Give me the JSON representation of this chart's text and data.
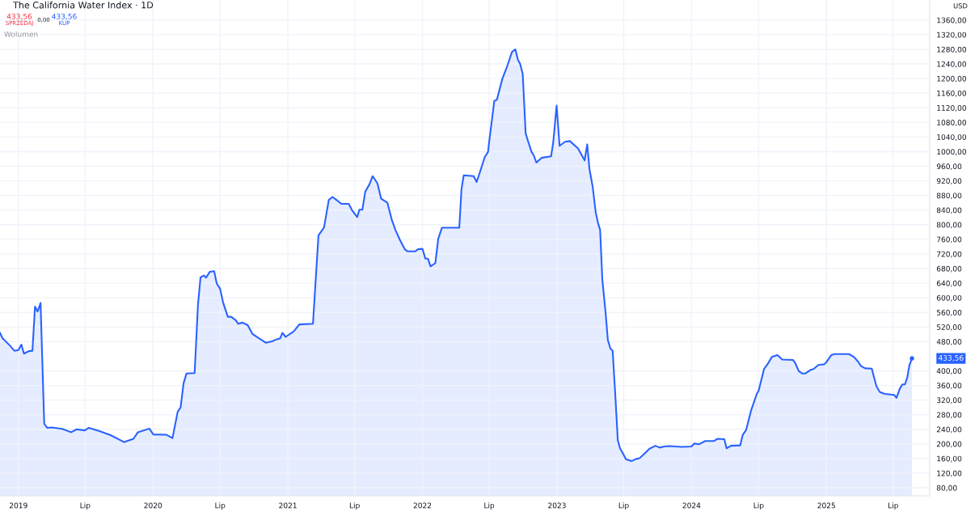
{
  "chart_data": {
    "type": "area",
    "title": "The California Water Index · 1D",
    "annotations": [
      "433,56",
      "SPRZEDAJ",
      "0,00",
      "433,56",
      "KUP",
      "Wolumen",
      "USD",
      "433,56"
    ],
    "x": [
      "2018-11-12",
      "2018-11-19",
      "2018-12-08",
      "2018-12-21",
      "2019-01-01",
      "2019-01-09",
      "2019-01-16",
      "2019-01-29",
      "2019-02-08",
      "2019-02-15",
      "2019-02-22",
      "2019-03-02",
      "2019-03-12",
      "2019-03-20",
      "2019-04-02",
      "2019-04-30",
      "2019-05-24",
      "2019-06-08",
      "2019-06-30",
      "2019-07-11",
      "2019-08-09",
      "2019-09-08",
      "2019-10-15",
      "2019-11-09",
      "2019-11-21",
      "2019-12-22",
      "2020-01-02",
      "2020-02-07",
      "2020-02-23",
      "2020-03-08",
      "2020-03-16",
      "2020-03-24",
      "2020-04-01",
      "2020-04-23",
      "2020-05-02",
      "2020-05-09",
      "2020-05-18",
      "2020-05-24",
      "2020-06-03",
      "2020-06-15",
      "2020-06-22",
      "2020-07-01",
      "2020-07-09",
      "2020-07-22",
      "2020-07-31",
      "2020-08-13",
      "2020-08-19",
      "2020-08-31",
      "2020-09-14",
      "2020-09-27",
      "2020-10-15",
      "2020-11-02",
      "2020-11-19",
      "2020-12-01",
      "2020-12-11",
      "2020-12-17",
      "2020-12-26",
      "2021-01-17",
      "2021-02-01",
      "2021-03-10",
      "2021-03-25",
      "2021-04-09",
      "2021-04-22",
      "2021-05-02",
      "2021-05-14",
      "2021-05-26",
      "2021-06-15",
      "2021-06-25",
      "2021-07-08",
      "2021-07-14",
      "2021-07-22",
      "2021-07-30",
      "2021-08-10",
      "2021-08-19",
      "2021-09-01",
      "2021-09-11",
      "2021-09-28",
      "2021-10-10",
      "2021-10-20",
      "2021-11-01",
      "2021-11-14",
      "2021-11-22",
      "2021-12-12",
      "2021-12-20",
      "2022-01-01",
      "2022-01-09",
      "2022-01-16",
      "2022-01-23",
      "2022-02-05",
      "2022-02-13",
      "2022-02-23",
      "2022-04-11",
      "2022-04-17",
      "2022-04-23",
      "2022-05-20",
      "2022-05-28",
      "2022-06-06",
      "2022-06-19",
      "2022-06-28",
      "2022-07-01",
      "2022-07-15",
      "2022-07-22",
      "2022-08-06",
      "2022-08-19",
      "2022-09-01",
      "2022-09-10",
      "2022-09-17",
      "2022-09-23",
      "2022-09-30",
      "2022-10-08",
      "2022-10-15",
      "2022-10-24",
      "2022-10-30",
      "2022-11-06",
      "2022-11-20",
      "2022-12-16",
      "2022-12-22",
      "2022-12-31",
      "2023-01-08",
      "2023-01-23",
      "2023-02-05",
      "2023-02-27",
      "2023-03-17",
      "2023-03-24",
      "2023-03-30",
      "2023-04-08",
      "2023-04-16",
      "2023-04-23",
      "2023-04-28",
      "2023-05-04",
      "2023-05-13",
      "2023-05-19",
      "2023-05-26",
      "2023-06-01",
      "2023-06-08",
      "2023-06-15",
      "2023-06-21",
      "2023-06-30",
      "2023-07-07",
      "2023-07-22",
      "2023-08-04",
      "2023-08-13",
      "2023-08-26",
      "2023-09-09",
      "2023-09-25",
      "2023-10-07",
      "2023-10-19",
      "2023-11-01",
      "2023-12-06",
      "2024-01-01",
      "2024-01-08",
      "2024-01-21",
      "2024-02-07",
      "2024-03-02",
      "2024-03-11",
      "2024-03-30",
      "2024-04-05",
      "2024-04-17",
      "2024-05-12",
      "2024-05-19",
      "2024-05-28",
      "2024-06-11",
      "2024-06-26",
      "2024-07-01",
      "2024-07-16",
      "2024-07-25",
      "2024-08-06",
      "2024-08-21",
      "2024-09-03",
      "2024-10-02",
      "2024-10-09",
      "2024-10-18",
      "2024-10-27",
      "2024-11-05",
      "2024-11-18",
      "2024-11-27",
      "2024-12-10",
      "2024-12-26",
      "2025-01-01",
      "2025-01-14",
      "2025-01-23",
      "2025-03-03",
      "2025-03-17",
      "2025-03-27",
      "2025-04-05",
      "2025-04-16",
      "2025-05-04",
      "2025-05-10",
      "2025-05-17",
      "2025-05-26",
      "2025-06-08",
      "2025-07-04",
      "2025-07-10",
      "2025-07-19",
      "2025-07-26",
      "2025-08-02",
      "2025-08-08",
      "2025-08-14",
      "2025-08-21"
    ],
    "series": [
      {
        "color": "#2962ff",
        "values": [
          504,
          489,
          470,
          455,
          457,
          472,
          447,
          454,
          455,
          576,
          562,
          586,
          255,
          244,
          245,
          241,
          232,
          240,
          237,
          244,
          235,
          224,
          205,
          214,
          232,
          242,
          226,
          225,
          216,
          288,
          300,
          366,
          393,
          394,
          580,
          656,
          661,
          655,
          671,
          673,
          639,
          625,
          588,
          548,
          548,
          538,
          529,
          532,
          525,
          501,
          489,
          477,
          481,
          486,
          489,
          504,
          493,
          508,
          527,
          529,
          771,
          792,
          868,
          876,
          867,
          857,
          857,
          838,
          821,
          841,
          841,
          891,
          910,
          933,
          913,
          871,
          860,
          813,
          785,
          758,
          733,
          727,
          727,
          733,
          734,
          707,
          707,
          686,
          695,
          762,
          792,
          792,
          898,
          935,
          933,
          917,
          944,
          985,
          999,
          1027,
          1139,
          1142,
          1200,
          1234,
          1273,
          1280,
          1252,
          1240,
          1213,
          1050,
          1027,
          999,
          990,
          970,
          983,
          987,
          1027,
          1126,
          1016,
          1027,
          1029,
          1009,
          976,
          1020,
          953,
          903,
          834,
          802,
          786,
          650,
          558,
          484,
          461,
          455,
          337,
          210,
          188,
          172,
          158,
          153,
          159,
          161,
          173,
          187,
          195,
          190,
          193,
          194,
          192,
          193,
          201,
          199,
          208,
          208,
          214,
          213,
          188,
          195,
          196,
          225,
          238,
          293,
          337,
          346,
          406,
          418,
          438,
          443,
          431,
          430,
          420,
          399,
          393,
          393,
          402,
          405,
          416,
          418,
          424,
          443,
          446,
          446,
          438,
          426,
          413,
          407,
          406,
          383,
          357,
          342,
          337,
          334,
          326,
          351,
          363,
          363,
          381,
          415,
          434
        ]
      }
    ],
    "xlim": [
      "2018-11-12",
      "2025-10-08"
    ],
    "xticks": [
      {
        "value": "2019-01-01",
        "label": "2019"
      },
      {
        "value": "2019-07-01",
        "label": "Lip"
      },
      {
        "value": "2020-01-01",
        "label": "2020"
      },
      {
        "value": "2020-07-01",
        "label": "Lip"
      },
      {
        "value": "2021-01-01",
        "label": "2021"
      },
      {
        "value": "2021-07-01",
        "label": "Lip"
      },
      {
        "value": "2022-01-01",
        "label": "2022"
      },
      {
        "value": "2022-07-01",
        "label": "Lip"
      },
      {
        "value": "2023-01-01",
        "label": "2023"
      },
      {
        "value": "2023-07-01",
        "label": "Lip"
      },
      {
        "value": "2024-01-01",
        "label": "2024"
      },
      {
        "value": "2024-07-01",
        "label": "Lip"
      },
      {
        "value": "2025-01-01",
        "label": "2025"
      },
      {
        "value": "2025-07-01",
        "label": "Lip"
      }
    ],
    "ylim": [
      58,
      1415
    ],
    "yticks": [
      {
        "value": 80,
        "label": "80,00"
      },
      {
        "value": 120,
        "label": "120,00"
      },
      {
        "value": 160,
        "label": "160,00"
      },
      {
        "value": 200,
        "label": "200,00"
      },
      {
        "value": 240,
        "label": "240,00"
      },
      {
        "value": 280,
        "label": "280,00"
      },
      {
        "value": 320,
        "label": "320,00"
      },
      {
        "value": 360,
        "label": "360,00"
      },
      {
        "value": 400,
        "label": "400,00"
      },
      {
        "value": 480,
        "label": "480,00"
      },
      {
        "value": 520,
        "label": "520,00"
      },
      {
        "value": 560,
        "label": "560,00"
      },
      {
        "value": 600,
        "label": "600,00"
      },
      {
        "value": 640,
        "label": "640,00"
      },
      {
        "value": 680,
        "label": "680,00"
      },
      {
        "value": 720,
        "label": "720,00"
      },
      {
        "value": 760,
        "label": "760,00"
      },
      {
        "value": 800,
        "label": "800,00"
      },
      {
        "value": 840,
        "label": "840,00"
      },
      {
        "value": 880,
        "label": "880,00"
      },
      {
        "value": 920,
        "label": "920,00"
      },
      {
        "value": 960,
        "label": "960,00"
      },
      {
        "value": 1000,
        "label": "1000,00"
      },
      {
        "value": 1040,
        "label": "1040,00"
      },
      {
        "value": 1080,
        "label": "1080,00"
      },
      {
        "value": 1120,
        "label": "1120,00"
      },
      {
        "value": 1160,
        "label": "1160,00"
      },
      {
        "value": 1200,
        "label": "1200,00"
      },
      {
        "value": 1240,
        "label": "1240,00"
      },
      {
        "value": 1280,
        "label": "1280,00"
      },
      {
        "value": 1320,
        "label": "1320,00"
      },
      {
        "value": 1360,
        "label": "1360,00"
      }
    ],
    "grid": true
  }
}
